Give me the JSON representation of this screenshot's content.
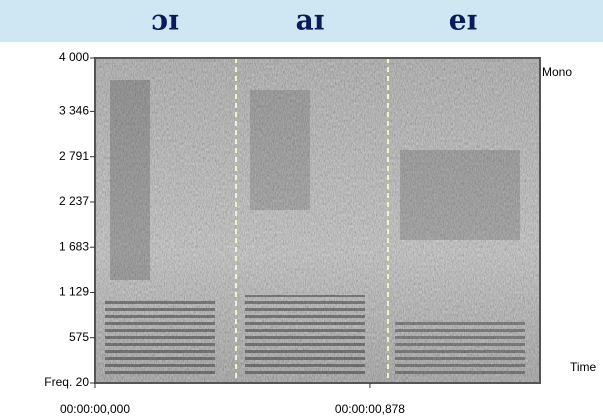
{
  "chart_data": {
    "type": "spectrogram",
    "segment_labels": [
      "ɔɪ",
      "aɪ",
      "eɪ"
    ],
    "channel_label": "Mono",
    "x_label": "Time",
    "ylim": [
      20,
      4000
    ],
    "yticks": [
      {
        "value": 20,
        "label": "Freq. 20"
      },
      575,
      {
        "value": 1129,
        "label": "1 129"
      },
      {
        "value": 1683,
        "label": "1 683"
      },
      {
        "value": 2237,
        "label": "2 237"
      },
      {
        "value": 2791,
        "label": "2 791"
      },
      {
        "value": 3346,
        "label": "3 346"
      },
      {
        "value": 4000,
        "label": "4 000"
      }
    ],
    "xlim": [
      0,
      1.421
    ],
    "xticks": [
      {
        "value": 0,
        "label": "00:00:00,000"
      },
      {
        "value": 0.878,
        "label": "00:00:00,878"
      }
    ]
  }
}
